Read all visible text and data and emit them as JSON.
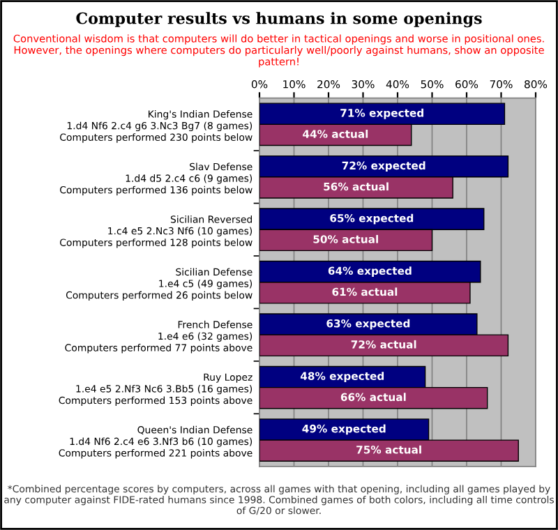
{
  "chart_data": {
    "type": "bar",
    "orientation": "horizontal",
    "title": "Computer results vs humans in some openings",
    "subtitle": "Conventional wisdom is that computers will do better in tactical openings and worse in positional ones. However, the openings where computers do particularly well/poorly against humans, show an opposite pattern!",
    "categories": [
      "King's Indian Defense\n1.d4 Nf6 2.c4 g6 3.Nc3 Bg7 (8 games)\nComputers performed 230 points below",
      "Slav Defense\n1.d4 d5 2.c4 c6 (9 games)\nComputers performed 136 points below",
      "Sicilian Reversed\n1.c4 e5 2.Nc3 Nf6 (10 games)\nComputers performed 128 points below",
      "Sicilian Defense\n1.e4 c5 (49 games)\nComputers performed 26 points below",
      "French Defense\n1.e4 e6 (32 games)\nComputers performed 77 points above",
      "Ruy Lopez\n1.e4 e5 2.Nf3 Nc6 3.Bb5 (16 games)\nComputers performed 153 points above",
      "Queen's Indian Defense\n1.d4 Nf6 2.c4 e6 3.Nf3 b6 (10 games)\nComputers performed 221 points above"
    ],
    "series": [
      {
        "color": "#000080",
        "values": [
          71,
          72,
          65,
          64,
          63,
          48,
          49
        ],
        "value_labels": [
          "71% expected",
          "72% expected",
          "65% expected",
          "64% expected",
          "63% expected",
          "48% expected",
          "49% expected"
        ]
      },
      {
        "color": "#993366",
        "values": [
          44,
          56,
          50,
          61,
          72,
          66,
          75
        ],
        "value_labels": [
          "44% actual",
          "56% actual",
          "50% actual",
          "61% actual",
          "72% actual",
          "66% actual",
          "75% actual"
        ]
      }
    ],
    "xlim": [
      0,
      80
    ],
    "xticks": [
      {
        "value": 0,
        "label": "0%"
      },
      {
        "value": 10,
        "label": "10%"
      },
      {
        "value": 20,
        "label": "20%"
      },
      {
        "value": 30,
        "label": "30%"
      },
      {
        "value": 40,
        "label": "40%"
      },
      {
        "value": 50,
        "label": "50%"
      },
      {
        "value": 60,
        "label": "60%"
      },
      {
        "value": 70,
        "label": "70%"
      },
      {
        "value": 80,
        "label": "80%"
      }
    ],
    "grid": "x",
    "annotations": [
      "*Combined percentage scores by computers, across all games with that opening, including all games played by any computer against FIDE-rated humans since 1998. Combined games of both colors, including all time controls of G/20 or slower."
    ]
  }
}
